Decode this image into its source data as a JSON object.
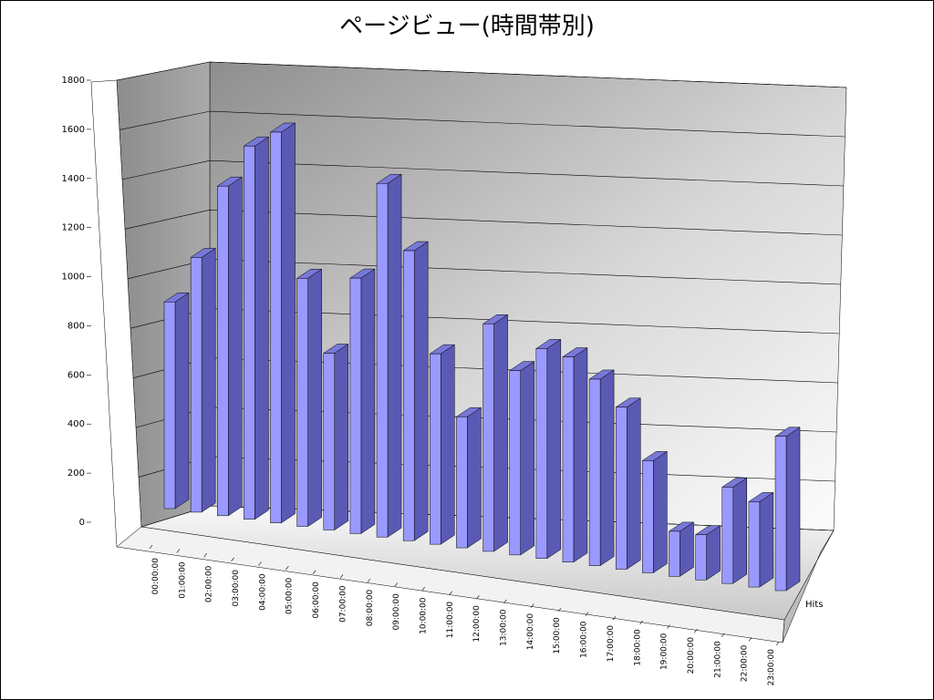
{
  "chart_data": {
    "type": "bar",
    "title": "ページビュー(時間帯別)",
    "categories": [
      "00:00:00",
      "01:00:00",
      "02:00:00",
      "03:00:00",
      "04:00:00",
      "05:00:00",
      "06:00:00",
      "07:00:00",
      "08:00:00",
      "09:00:00",
      "10:00:00",
      "11:00:00",
      "12:00:00",
      "13:00:00",
      "14:00:00",
      "15:00:00",
      "16:00:00",
      "17:00:00",
      "18:00:00",
      "19:00:00",
      "20:00:00",
      "21:00:00",
      "22:00:00",
      "23:00:00"
    ],
    "series": [
      {
        "name": "Hits",
        "values": [
          790,
          970,
          1250,
          1410,
          1470,
          930,
          660,
          950,
          1310,
          1070,
          700,
          480,
          830,
          670,
          760,
          740,
          670,
          580,
          400,
          160,
          160,
          340,
          300,
          540
        ]
      }
    ],
    "ylim": [
      0,
      1800
    ],
    "yticks": [
      "0",
      "200",
      "400",
      "600",
      "800",
      "1000",
      "1200",
      "1400",
      "1600",
      "1800"
    ],
    "grid": true,
    "colors": {
      "bar_front": "#9999FF",
      "bar_side": "#5A5AB4",
      "bar_top": "#7878D8",
      "grid": "#000000"
    }
  }
}
